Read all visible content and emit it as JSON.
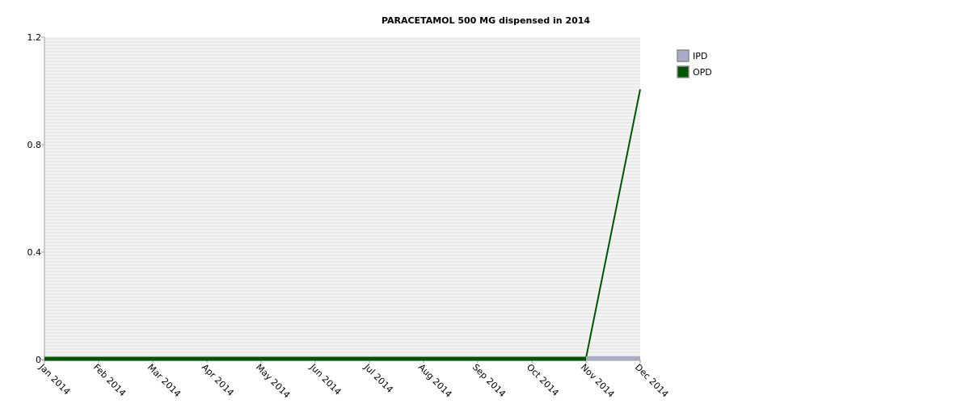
{
  "chart_data": {
    "type": "area",
    "title": "PARACETAMOL 500 MG dispensed in 2014",
    "xlabel": "",
    "ylabel": "",
    "categories": [
      "Jan 2014",
      "Feb 2014",
      "Mar 2014",
      "Apr 2014",
      "May 2014",
      "Jun 2014",
      "Jul 2014",
      "Aug 2014",
      "Sep 2014",
      "Oct 2014",
      "Nov 2014",
      "Dec 2014"
    ],
    "ylim": [
      0,
      1.2
    ],
    "yticks": [
      "1.2",
      "0.8",
      "0.4",
      "0"
    ],
    "ytick_values": [
      1.2,
      0.8,
      0.4,
      0
    ],
    "grid": true,
    "legend_position": "top-right",
    "series": [
      {
        "name": "IPD",
        "values": [
          0,
          0,
          0,
          0,
          0,
          0,
          0,
          0,
          0,
          0,
          0,
          0
        ],
        "color": "#aaaacc"
      },
      {
        "name": "OPD",
        "values": [
          0,
          0,
          0,
          0,
          0,
          0,
          0,
          0,
          0,
          0,
          0,
          1
        ],
        "color": "#005500"
      }
    ]
  }
}
